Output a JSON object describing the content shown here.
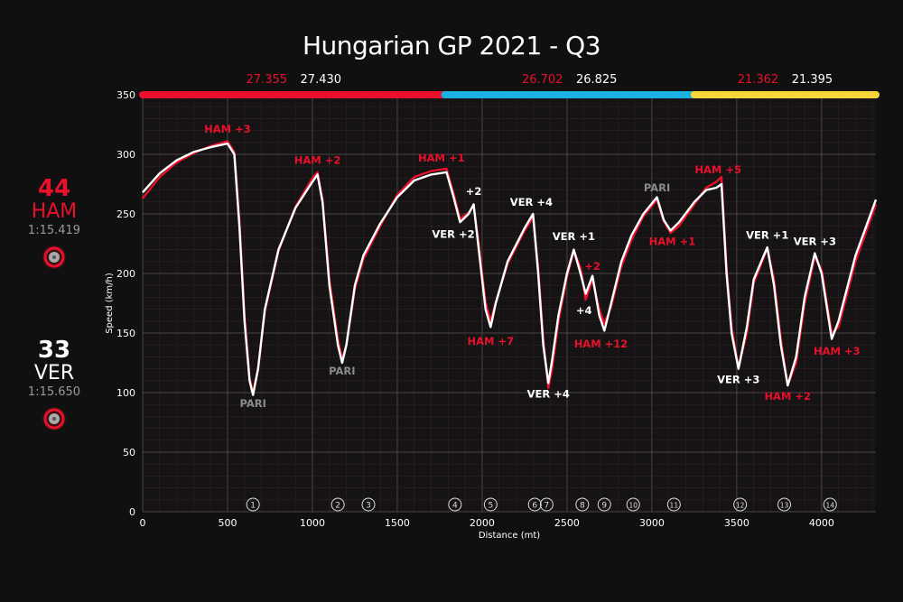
{
  "colors": {
    "ham": "#e8102a",
    "ver": "#ffffff",
    "sector1": "#e8102a",
    "sector2": "#1ab0e0",
    "sector3": "#f5d638",
    "pari": "#8a8a8a"
  },
  "drivers": [
    {
      "number": "44",
      "code": "HAM",
      "laptime": "1:15.419",
      "color": "#e8102a",
      "tyre": "soft-tyre-icon"
    },
    {
      "number": "33",
      "code": "VER",
      "laptime": "1:15.650",
      "color": "#ffffff",
      "tyre": "soft-tyre-icon"
    }
  ],
  "chart_data": {
    "type": "line",
    "title": "Hungarian GP 2021 - Q3",
    "xlabel": "Distance (mt)",
    "ylabel": "Speed (km/h)",
    "xlim": [
      0,
      4320
    ],
    "ylim": [
      0,
      350
    ],
    "xticks": [
      0,
      500,
      1000,
      1500,
      2000,
      2500,
      3000,
      3500,
      4000
    ],
    "yticks": [
      0,
      50,
      100,
      150,
      200,
      250,
      300,
      350
    ],
    "grid": true,
    "sectors": [
      {
        "from": 0,
        "to": 1780,
        "color": "#e8102a",
        "ham": "27.355",
        "ver": "27.430"
      },
      {
        "from": 1780,
        "to": 3250,
        "color": "#1ab0e0",
        "ham": "26.702",
        "ver": "26.825"
      },
      {
        "from": 3250,
        "to": 4320,
        "color": "#f5d638",
        "ham": "21.362",
        "ver": "21.395"
      }
    ],
    "series": [
      {
        "name": "HAM",
        "color": "#e8102a",
        "x": [
          0,
          100,
          200,
          300,
          400,
          500,
          540,
          570,
          600,
          630,
          650,
          680,
          720,
          800,
          900,
          1000,
          1030,
          1060,
          1100,
          1150,
          1175,
          1200,
          1250,
          1300,
          1400,
          1500,
          1600,
          1700,
          1790,
          1830,
          1870,
          1920,
          1950,
          1980,
          2020,
          2050,
          2080,
          2150,
          2250,
          2300,
          2330,
          2360,
          2390,
          2410,
          2450,
          2500,
          2540,
          2580,
          2610,
          2650,
          2690,
          2720,
          2760,
          2820,
          2880,
          2950,
          3030,
          3070,
          3110,
          3160,
          3250,
          3320,
          3380,
          3410,
          3440,
          3470,
          3510,
          3560,
          3600,
          3680,
          3720,
          3760,
          3800,
          3850,
          3900,
          3960,
          4000,
          4060,
          4100,
          4200,
          4320
        ],
        "y": [
          263,
          281,
          293,
          301,
          307,
          311,
          302,
          245,
          165,
          112,
          100,
          120,
          168,
          219,
          256,
          280,
          285,
          262,
          195,
          145,
          128,
          140,
          187,
          212,
          240,
          266,
          281,
          286,
          288,
          268,
          246,
          251,
          257,
          225,
          176,
          160,
          176,
          208,
          236,
          247,
          205,
          145,
          104,
          118,
          160,
          197,
          219,
          205,
          178,
          195,
          170,
          158,
          172,
          206,
          228,
          248,
          262,
          244,
          234,
          240,
          258,
          272,
          277,
          281,
          205,
          155,
          121,
          150,
          192,
          221,
          195,
          145,
          106,
          125,
          175,
          214,
          203,
          150,
          155,
          210,
          258
        ]
      },
      {
        "name": "VER",
        "color": "#ffffff",
        "x": [
          0,
          100,
          200,
          300,
          400,
          500,
          540,
          570,
          600,
          630,
          650,
          680,
          720,
          800,
          900,
          1000,
          1030,
          1060,
          1100,
          1150,
          1175,
          1200,
          1250,
          1300,
          1400,
          1500,
          1600,
          1700,
          1790,
          1830,
          1870,
          1920,
          1950,
          1980,
          2020,
          2050,
          2080,
          2150,
          2250,
          2300,
          2330,
          2360,
          2390,
          2410,
          2450,
          2500,
          2540,
          2580,
          2610,
          2650,
          2690,
          2720,
          2760,
          2820,
          2880,
          2950,
          3030,
          3070,
          3110,
          3160,
          3250,
          3320,
          3380,
          3410,
          3440,
          3470,
          3510,
          3560,
          3600,
          3680,
          3720,
          3760,
          3800,
          3850,
          3900,
          3960,
          4000,
          4060,
          4100,
          4200,
          4320
        ],
        "y": [
          268,
          284,
          295,
          302,
          306,
          309,
          300,
          240,
          160,
          110,
          98,
          120,
          170,
          220,
          255,
          277,
          283,
          260,
          190,
          140,
          125,
          140,
          190,
          215,
          242,
          264,
          278,
          283,
          285,
          265,
          243,
          250,
          258,
          220,
          170,
          155,
          175,
          210,
          238,
          250,
          200,
          140,
          108,
          125,
          165,
          200,
          220,
          200,
          183,
          198,
          165,
          152,
          175,
          210,
          232,
          250,
          264,
          245,
          236,
          243,
          260,
          270,
          272,
          275,
          200,
          150,
          120,
          155,
          195,
          222,
          190,
          140,
          106,
          130,
          180,
          217,
          200,
          145,
          160,
          215,
          262
        ]
      }
    ],
    "annotations": [
      {
        "text": "HAM +3",
        "x": 500,
        "y": 318,
        "color": "ham"
      },
      {
        "text": "PARI",
        "x": 650,
        "y": 88,
        "color": "pari"
      },
      {
        "text": "HAM +2",
        "x": 1030,
        "y": 292,
        "color": "ham"
      },
      {
        "text": "PARI",
        "x": 1175,
        "y": 115,
        "color": "pari"
      },
      {
        "text": "HAM +1",
        "x": 1760,
        "y": 294,
        "color": "ham"
      },
      {
        "text": "+2",
        "x": 1950,
        "y": 266,
        "color": "ver"
      },
      {
        "text": "VER +2",
        "x": 1830,
        "y": 230,
        "color": "ver"
      },
      {
        "text": "HAM +7",
        "x": 2050,
        "y": 140,
        "color": "ham"
      },
      {
        "text": "VER +4",
        "x": 2290,
        "y": 257,
        "color": "ver"
      },
      {
        "text": "VER +4",
        "x": 2390,
        "y": 96,
        "color": "ver"
      },
      {
        "text": "VER +1",
        "x": 2540,
        "y": 228,
        "color": "ver"
      },
      {
        "text": "+2",
        "x": 2650,
        "y": 203,
        "color": "ham"
      },
      {
        "text": "+4",
        "x": 2600,
        "y": 166,
        "color": "ver"
      },
      {
        "text": "HAM +12",
        "x": 2700,
        "y": 138,
        "color": "ham"
      },
      {
        "text": "PARI",
        "x": 3030,
        "y": 269,
        "color": "pari"
      },
      {
        "text": "HAM +1",
        "x": 3120,
        "y": 224,
        "color": "ham"
      },
      {
        "text": "HAM +5",
        "x": 3390,
        "y": 284,
        "color": "ham"
      },
      {
        "text": "VER +1",
        "x": 3680,
        "y": 229,
        "color": "ver"
      },
      {
        "text": "VER +3",
        "x": 3510,
        "y": 108,
        "color": "ver"
      },
      {
        "text": "HAM +2",
        "x": 3800,
        "y": 94,
        "color": "ham"
      },
      {
        "text": "VER +3",
        "x": 3960,
        "y": 224,
        "color": "ver"
      },
      {
        "text": "HAM +3",
        "x": 4090,
        "y": 132,
        "color": "ham"
      }
    ],
    "corners": [
      {
        "label": "1",
        "x": 650
      },
      {
        "label": "2",
        "x": 1150
      },
      {
        "label": "3",
        "x": 1330
      },
      {
        "label": "4",
        "x": 1840
      },
      {
        "label": "5",
        "x": 2050
      },
      {
        "label": "6",
        "x": 2310
      },
      {
        "label": "7",
        "x": 2380
      },
      {
        "label": "8",
        "x": 2590
      },
      {
        "label": "9",
        "x": 2720
      },
      {
        "label": "10",
        "x": 2890
      },
      {
        "label": "11",
        "x": 3130
      },
      {
        "label": "12",
        "x": 3520
      },
      {
        "label": "13",
        "x": 3780
      },
      {
        "label": "14",
        "x": 4050
      }
    ]
  }
}
